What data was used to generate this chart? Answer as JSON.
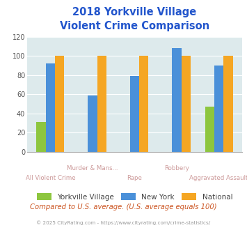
{
  "title_line1": "2018 Yorkville Village",
  "title_line2": "Violent Crime Comparison",
  "top_labels": [
    "",
    "Murder & Mans...",
    "",
    "Robbery",
    ""
  ],
  "bot_labels": [
    "All Violent Crime",
    "",
    "Rape",
    "",
    "Aggravated Assault"
  ],
  "series": {
    "Yorkville Village": [
      31,
      0,
      0,
      0,
      47
    ],
    "New York": [
      92,
      59,
      79,
      108,
      90
    ],
    "National": [
      100,
      100,
      100,
      100,
      100
    ]
  },
  "colors": {
    "Yorkville Village": "#8dc63f",
    "New York": "#4a90d9",
    "National": "#f5a623"
  },
  "ylim": [
    0,
    120
  ],
  "yticks": [
    0,
    20,
    40,
    60,
    80,
    100,
    120
  ],
  "fig_bg_color": "#ffffff",
  "plot_bg_color": "#ddeaec",
  "title_color": "#2255cc",
  "axis_label_color": "#cc9999",
  "legend_label_color": "#444444",
  "footer_text": "Compared to U.S. average. (U.S. average equals 100)",
  "copyright_text": "© 2025 CityRating.com - https://www.cityrating.com/crime-statistics/",
  "footer_color": "#cc5522",
  "copyright_color": "#999999",
  "bar_width": 0.22
}
